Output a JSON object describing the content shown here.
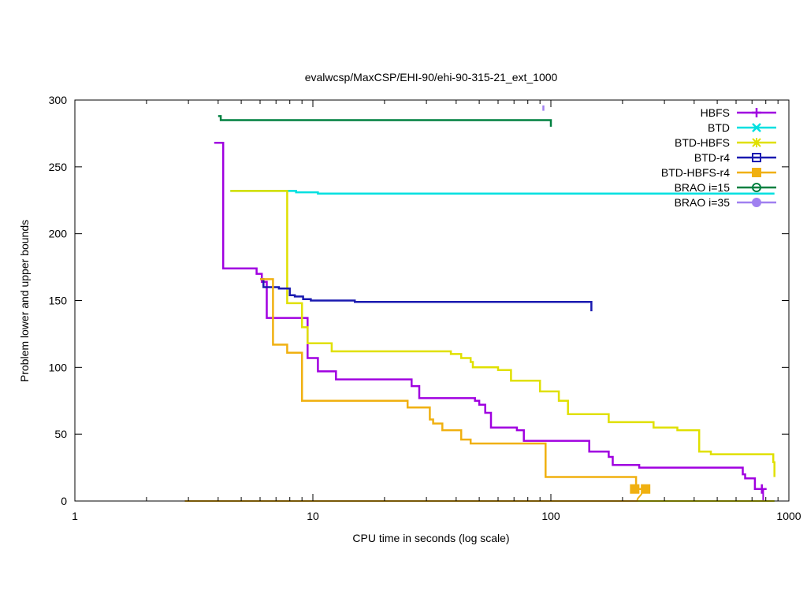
{
  "chart_data": {
    "type": "line",
    "title": "evalwcsp/MaxCSP/EHI-90/ehi-90-315-21_ext_1000",
    "xlabel": "CPU time in seconds (log scale)",
    "ylabel": "Problem lower and upper bounds",
    "xscale": "log",
    "xlim": [
      1,
      1000
    ],
    "ylim": [
      0,
      300
    ],
    "xticks": [
      1,
      10,
      100,
      1000
    ],
    "xtick_labels": [
      "1",
      "10",
      "100",
      "1000"
    ],
    "yticks": [
      0,
      50,
      100,
      150,
      200,
      250,
      300
    ],
    "ytick_labels": [
      "0",
      "50",
      "100",
      "150",
      "200",
      "250",
      "300"
    ],
    "grid": false,
    "legend_position": "top-right",
    "series": [
      {
        "name": "HBFS",
        "color": "#a000e0",
        "marker": "plus",
        "upper": [
          [
            3.85,
            268
          ],
          [
            4.2,
            268
          ],
          [
            4.2,
            174
          ],
          [
            5.8,
            174
          ],
          [
            5.8,
            170
          ],
          [
            6.1,
            170
          ],
          [
            6.1,
            164
          ],
          [
            6.4,
            164
          ],
          [
            6.4,
            137
          ],
          [
            9.5,
            137
          ],
          [
            9.5,
            107
          ],
          [
            10.5,
            107
          ],
          [
            10.5,
            97
          ],
          [
            12.5,
            97
          ],
          [
            12.5,
            91
          ],
          [
            26,
            91
          ],
          [
            26,
            86
          ],
          [
            28,
            86
          ],
          [
            28,
            77
          ],
          [
            48,
            77
          ],
          [
            48,
            75
          ],
          [
            50,
            75
          ],
          [
            50,
            72
          ],
          [
            53,
            72
          ],
          [
            53,
            66
          ],
          [
            56,
            66
          ],
          [
            56,
            55
          ],
          [
            72,
            55
          ],
          [
            72,
            53
          ],
          [
            77,
            53
          ],
          [
            77,
            45
          ],
          [
            145,
            45
          ],
          [
            145,
            37
          ],
          [
            175,
            37
          ],
          [
            175,
            33
          ],
          [
            182,
            33
          ],
          [
            182,
            27
          ],
          [
            235,
            27
          ],
          [
            235,
            25
          ],
          [
            640,
            25
          ],
          [
            640,
            20
          ],
          [
            655,
            20
          ],
          [
            655,
            17
          ],
          [
            720,
            17
          ],
          [
            720,
            9
          ],
          [
            780,
            9
          ],
          [
            780,
            8
          ]
        ],
        "lower": [
          [
            3.6,
            0
          ],
          [
            780,
            0
          ],
          [
            780,
            9
          ]
        ]
      },
      {
        "name": "BTD",
        "color": "#00e0e0",
        "marker": "x",
        "upper": [
          [
            4.5,
            232
          ],
          [
            8,
            232
          ],
          [
            8,
            232
          ],
          [
            8.5,
            232
          ],
          [
            8.5,
            231
          ],
          [
            10.5,
            231
          ],
          [
            10.5,
            230
          ],
          [
            870,
            230
          ]
        ],
        "lower": [
          [
            2.9,
            0
          ],
          [
            870,
            0
          ]
        ]
      },
      {
        "name": "BTD-HBFS",
        "color": "#e0e000",
        "marker": "star",
        "upper": [
          [
            4.5,
            232
          ],
          [
            7.8,
            232
          ],
          [
            7.8,
            148
          ],
          [
            9,
            148
          ],
          [
            9,
            130
          ],
          [
            9.5,
            130
          ],
          [
            9.5,
            118
          ],
          [
            12,
            118
          ],
          [
            12,
            112
          ],
          [
            38,
            112
          ],
          [
            38,
            110
          ],
          [
            42,
            110
          ],
          [
            42,
            107
          ],
          [
            46,
            107
          ],
          [
            46,
            104
          ],
          [
            47,
            104
          ],
          [
            47,
            100
          ],
          [
            60,
            100
          ],
          [
            60,
            98
          ],
          [
            68,
            98
          ],
          [
            68,
            90
          ],
          [
            90,
            90
          ],
          [
            90,
            82
          ],
          [
            108,
            82
          ],
          [
            108,
            75
          ],
          [
            118,
            75
          ],
          [
            118,
            65
          ],
          [
            175,
            65
          ],
          [
            175,
            59
          ],
          [
            270,
            59
          ],
          [
            270,
            55
          ],
          [
            340,
            55
          ],
          [
            340,
            53
          ],
          [
            420,
            53
          ],
          [
            420,
            37
          ],
          [
            470,
            37
          ],
          [
            470,
            35
          ],
          [
            860,
            35
          ],
          [
            860,
            29
          ],
          [
            870,
            29
          ],
          [
            870,
            18
          ]
        ],
        "lower": [
          [
            2.9,
            0
          ],
          [
            870,
            0
          ]
        ]
      },
      {
        "name": "BTD-r4",
        "color": "#1a1ab0",
        "marker": "square",
        "upper": [
          [
            6.0,
            166
          ],
          [
            6.2,
            166
          ],
          [
            6.2,
            160
          ],
          [
            7.2,
            160
          ],
          [
            7.2,
            159
          ],
          [
            8.0,
            159
          ],
          [
            8.0,
            154
          ],
          [
            8.4,
            154
          ],
          [
            8.4,
            153
          ],
          [
            9.1,
            153
          ],
          [
            9.1,
            151
          ],
          [
            9.8,
            151
          ],
          [
            9.8,
            150
          ],
          [
            15,
            150
          ],
          [
            15,
            149
          ],
          [
            148,
            149
          ],
          [
            148,
            142
          ]
        ],
        "lower": [
          [
            2.9,
            0
          ],
          [
            148,
            0
          ]
        ]
      },
      {
        "name": "BTD-HBFS-r4",
        "color": "#f0b010",
        "marker": "filled-square",
        "upper": [
          [
            6.0,
            166
          ],
          [
            6.8,
            166
          ],
          [
            6.8,
            117
          ],
          [
            7.8,
            117
          ],
          [
            7.8,
            111
          ],
          [
            9.0,
            111
          ],
          [
            9.0,
            75
          ],
          [
            25,
            75
          ],
          [
            25,
            70
          ],
          [
            31,
            70
          ],
          [
            31,
            61
          ],
          [
            32,
            61
          ],
          [
            32,
            58
          ],
          [
            35,
            58
          ],
          [
            35,
            53
          ],
          [
            42,
            53
          ],
          [
            42,
            46
          ],
          [
            46,
            46
          ],
          [
            46,
            43
          ],
          [
            95,
            43
          ],
          [
            95,
            18
          ],
          [
            228,
            18
          ],
          [
            228,
            9
          ],
          [
            250,
            9
          ]
        ],
        "lower": [
          [
            2.9,
            0
          ],
          [
            230,
            0
          ],
          [
            232,
            2
          ],
          [
            240,
            5
          ],
          [
            245,
            9
          ],
          [
            250,
            9
          ]
        ]
      },
      {
        "name": "BRAO i=15",
        "color": "#008040",
        "marker": "circle",
        "upper": [
          [
            4.0,
            288
          ],
          [
            4.1,
            288
          ],
          [
            4.1,
            285
          ],
          [
            100,
            285
          ],
          [
            100,
            280
          ]
        ],
        "lower": []
      },
      {
        "name": "BRAO i=35",
        "color": "#a080f0",
        "marker": "filled-circle",
        "upper": [
          [
            93,
            296
          ],
          [
            93,
            292
          ]
        ],
        "lower": []
      }
    ],
    "markers": [
      {
        "series": "HBFS",
        "x": 770,
        "y": 9
      },
      {
        "series": "BTD-HBFS-r4",
        "x": 225,
        "y": 9
      },
      {
        "series": "BTD-HBFS-r4",
        "x": 250,
        "y": 9
      }
    ]
  }
}
